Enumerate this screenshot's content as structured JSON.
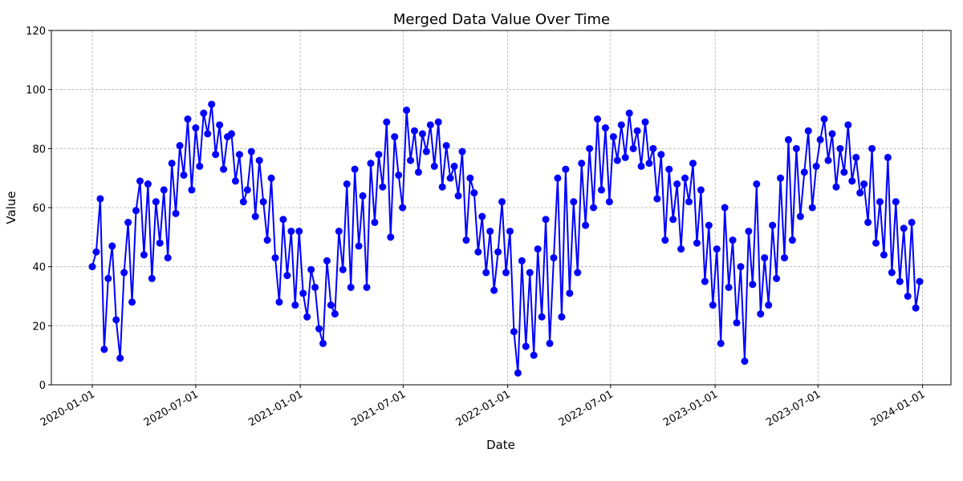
{
  "chart_data": {
    "type": "line",
    "title": "Merged Data Value Over Time",
    "x_label": "Date",
    "y_label": "Value",
    "x": [
      "2020-01-01",
      "2020-01-08",
      "2020-01-15",
      "2020-01-22",
      "2020-01-29",
      "2020-02-05",
      "2020-02-12",
      "2020-02-19",
      "2020-02-26",
      "2020-03-04",
      "2020-03-11",
      "2020-03-18",
      "2020-03-25",
      "2020-04-01",
      "2020-04-08",
      "2020-04-15",
      "2020-04-22",
      "2020-04-29",
      "2020-05-06",
      "2020-05-13",
      "2020-05-20",
      "2020-05-27",
      "2020-06-03",
      "2020-06-10",
      "2020-06-17",
      "2020-06-24",
      "2020-07-01",
      "2020-07-08",
      "2020-07-15",
      "2020-07-22",
      "2020-07-29",
      "2020-08-05",
      "2020-08-12",
      "2020-08-19",
      "2020-08-26",
      "2020-09-02",
      "2020-09-09",
      "2020-09-16",
      "2020-09-23",
      "2020-09-30",
      "2020-10-07",
      "2020-10-14",
      "2020-10-21",
      "2020-10-28",
      "2020-11-04",
      "2020-11-11",
      "2020-11-18",
      "2020-11-25",
      "2020-12-02",
      "2020-12-09",
      "2020-12-16",
      "2020-12-23",
      "2020-12-30",
      "2021-01-06",
      "2021-01-13",
      "2021-01-20",
      "2021-01-27",
      "2021-02-03",
      "2021-02-10",
      "2021-02-17",
      "2021-02-24",
      "2021-03-03",
      "2021-03-10",
      "2021-03-17",
      "2021-03-24",
      "2021-03-31",
      "2021-04-07",
      "2021-04-14",
      "2021-04-21",
      "2021-04-28",
      "2021-05-05",
      "2021-05-12",
      "2021-05-19",
      "2021-05-26",
      "2021-06-02",
      "2021-06-09",
      "2021-06-16",
      "2021-06-23",
      "2021-06-30",
      "2021-07-07",
      "2021-07-14",
      "2021-07-21",
      "2021-07-28",
      "2021-08-04",
      "2021-08-11",
      "2021-08-18",
      "2021-08-25",
      "2021-09-01",
      "2021-09-08",
      "2021-09-15",
      "2021-09-22",
      "2021-09-29",
      "2021-10-06",
      "2021-10-13",
      "2021-10-20",
      "2021-10-27",
      "2021-11-03",
      "2021-11-10",
      "2021-11-17",
      "2021-11-24",
      "2021-12-01",
      "2021-12-08",
      "2021-12-15",
      "2021-12-22",
      "2021-12-29",
      "2022-01-05",
      "2022-01-12",
      "2022-01-19",
      "2022-01-26",
      "2022-02-02",
      "2022-02-09",
      "2022-02-16",
      "2022-02-23",
      "2022-03-02",
      "2022-03-09",
      "2022-03-16",
      "2022-03-23",
      "2022-03-30",
      "2022-04-06",
      "2022-04-13",
      "2022-04-20",
      "2022-04-27",
      "2022-05-04",
      "2022-05-11",
      "2022-05-18",
      "2022-05-25",
      "2022-06-01",
      "2022-06-08",
      "2022-06-15",
      "2022-06-22",
      "2022-06-29",
      "2022-07-06",
      "2022-07-13",
      "2022-07-20",
      "2022-07-27",
      "2022-08-03",
      "2022-08-10",
      "2022-08-17",
      "2022-08-24",
      "2022-08-31",
      "2022-09-07",
      "2022-09-14",
      "2022-09-21",
      "2022-09-28",
      "2022-10-05",
      "2022-10-12",
      "2022-10-19",
      "2022-10-26",
      "2022-11-02",
      "2022-11-09",
      "2022-11-16",
      "2022-11-23",
      "2022-11-30",
      "2022-12-07",
      "2022-12-14",
      "2022-12-21",
      "2022-12-28",
      "2023-01-04",
      "2023-01-11",
      "2023-01-18",
      "2023-01-25",
      "2023-02-01",
      "2023-02-08",
      "2023-02-15",
      "2023-02-22",
      "2023-03-01",
      "2023-03-08",
      "2023-03-15",
      "2023-03-22",
      "2023-03-29",
      "2023-04-05",
      "2023-04-12",
      "2023-04-19",
      "2023-04-26",
      "2023-05-03",
      "2023-05-10",
      "2023-05-17",
      "2023-05-24",
      "2023-05-31",
      "2023-06-07",
      "2023-06-14",
      "2023-06-21",
      "2023-06-28",
      "2023-07-05",
      "2023-07-12",
      "2023-07-19",
      "2023-07-26",
      "2023-08-02",
      "2023-08-09",
      "2023-08-16",
      "2023-08-23",
      "2023-08-30",
      "2023-09-06",
      "2023-09-13",
      "2023-09-20",
      "2023-09-27",
      "2023-10-04",
      "2023-10-11",
      "2023-10-18",
      "2023-10-25",
      "2023-11-01",
      "2023-11-08",
      "2023-11-15",
      "2023-11-22",
      "2023-11-29",
      "2023-12-06",
      "2023-12-13",
      "2023-12-20",
      "2023-12-27"
    ],
    "series": [
      {
        "name": "Value",
        "color": "#0000ff",
        "values": [
          40,
          45,
          63,
          12,
          36,
          47,
          22,
          9,
          38,
          55,
          28,
          59,
          69,
          44,
          68,
          36,
          62,
          48,
          66,
          43,
          75,
          58,
          81,
          71,
          90,
          66,
          87,
          74,
          92,
          85,
          95,
          78,
          88,
          73,
          84,
          85,
          69,
          78,
          62,
          66,
          79,
          57,
          76,
          62,
          49,
          70,
          43,
          28,
          56,
          37,
          52,
          27,
          52,
          31,
          23,
          39,
          33,
          19,
          14,
          42,
          27,
          24,
          52,
          39,
          68,
          33,
          73,
          47,
          64,
          33,
          75,
          55,
          78,
          67,
          89,
          50,
          84,
          71,
          60,
          93,
          76,
          86,
          72,
          85,
          79,
          88,
          74,
          89,
          67,
          81,
          70,
          74,
          64,
          79,
          49,
          70,
          65,
          45,
          57,
          38,
          52,
          32,
          45,
          62,
          38,
          52,
          18,
          4,
          42,
          13,
          38,
          10,
          46,
          23,
          56,
          14,
          43,
          70,
          23,
          73,
          31,
          62,
          38,
          75,
          54,
          80,
          60,
          90,
          66,
          87,
          62,
          84,
          76,
          88,
          77,
          92,
          80,
          86,
          74,
          89,
          75,
          80,
          63,
          78,
          49,
          73,
          56,
          68,
          46,
          70,
          62,
          75,
          48,
          66,
          35,
          54,
          27,
          46,
          14,
          60,
          33,
          49,
          21,
          40,
          8,
          52,
          34,
          68,
          24,
          43,
          27,
          54,
          36,
          70,
          43,
          83,
          49,
          80,
          57,
          72,
          86,
          60,
          74,
          83,
          90,
          76,
          85,
          67,
          80,
          72,
          88,
          69,
          77,
          65,
          68,
          55,
          80,
          48,
          62,
          44,
          77,
          38,
          62,
          35,
          53,
          30,
          55,
          26,
          35
        ]
      }
    ],
    "xlim": [
      "2019-10-21",
      "2024-02-20"
    ],
    "xticks": [
      "2020-01-01",
      "2020-07-01",
      "2021-01-01",
      "2021-07-01",
      "2022-01-01",
      "2022-07-01",
      "2023-01-01",
      "2023-07-01",
      "2024-01-01"
    ],
    "ylim": [
      0,
      120
    ],
    "yticks": [
      0,
      20,
      40,
      60,
      80,
      100,
      120
    ],
    "grid": true
  }
}
